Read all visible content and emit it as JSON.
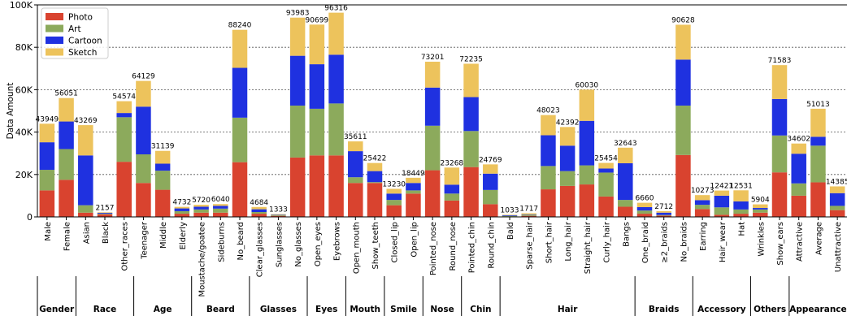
{
  "chart_data": {
    "type": "bar",
    "stacked": true,
    "ylabel": "Data Amount",
    "ylim": [
      0,
      100000
    ],
    "yticks": [
      0,
      20000,
      40000,
      60000,
      80000,
      100000
    ],
    "ytick_labels": [
      "0",
      "20K",
      "40K",
      "60K",
      "80K",
      "100K"
    ],
    "grid": "horizontal dashed",
    "legend_position": "top-left",
    "categories": [
      "Male",
      "Female",
      "Asian",
      "Black",
      "Other_races",
      "Teenager",
      "Middle",
      "Elderly",
      "Moustache/goatee",
      "Sideburns",
      "No_beard",
      "Clear_glasses",
      "Sunglasses",
      "No_glasses",
      "Open_eyes",
      "Eyebrows",
      "Open_mouth",
      "Show_teeth",
      "Closed_lip",
      "Open_lip",
      "Pointed_nose",
      "Round_nose",
      "Pointed_chin",
      "Round_chin",
      "Bald",
      "Sparse_hair",
      "Short_hair",
      "Long_hair",
      "Straight_hair",
      "Curly_hair",
      "Bangs",
      "One_braid",
      "≥2_braids",
      "No_braids",
      "Earring",
      "Hair_wear",
      "Hat",
      "Wrinkles",
      "Show_ears",
      "Attractive",
      "Average",
      "Unattractive"
    ],
    "totals": [
      43949,
      56051,
      43269,
      2157,
      54574,
      64129,
      31139,
      4732,
      5720,
      6040,
      88240,
      4684,
      1333,
      93983,
      90699,
      96316,
      35611,
      25422,
      13230,
      18449,
      73201,
      23268,
      72235,
      24769,
      1033,
      1717,
      48023,
      42392,
      60030,
      25454,
      32643,
      6660,
      2712,
      90628,
      10273,
      12421,
      12531,
      5904,
      71583,
      34602,
      51013,
      14385
    ],
    "total_labels": [
      "43949",
      "56051",
      "43269",
      "2157",
      "54574",
      "64129",
      "31139",
      "4732",
      "5720",
      "6040",
      "88240",
      "4684",
      "1333",
      "93983",
      "90699",
      "96316",
      "35611",
      "25422",
      "13230",
      "18449",
      "73201",
      "23268",
      "72235",
      "24769",
      "1033",
      "1717",
      "48023",
      "42392",
      "60030",
      "25454",
      "32643",
      "6660",
      "2712",
      "90628",
      "10273",
      "12421",
      "12531",
      "5904",
      "71583",
      "34602",
      "51013",
      "14385"
    ],
    "series": [
      {
        "name": "Photo",
        "color": "#d9432f",
        "values": [
          12500,
          17500,
          2000,
          1200,
          26000,
          16000,
          12800,
          1500,
          2000,
          2000,
          25800,
          1500,
          500,
          28000,
          29000,
          29000,
          16000,
          16000,
          5500,
          11000,
          22000,
          7700,
          23500,
          6000,
          200,
          500,
          13000,
          14600,
          15300,
          9600,
          4800,
          1500,
          600,
          29200,
          3700,
          1000,
          1500,
          2000,
          21000,
          10000,
          16300,
          3200
        ]
      },
      {
        "name": "Art",
        "color": "#8caa5c",
        "values": [
          9700,
          14500,
          3500,
          300,
          21000,
          13500,
          9000,
          1200,
          1500,
          1900,
          21000,
          800,
          400,
          24500,
          22000,
          24500,
          2700,
          400,
          2500,
          1500,
          21000,
          3300,
          17000,
          6700,
          300,
          500,
          11000,
          7000,
          9000,
          11300,
          3200,
          1500,
          300,
          23300,
          2000,
          3500,
          2000,
          1500,
          17400,
          5800,
          17300,
          2000
        ]
      },
      {
        "name": "Cartoon",
        "color": "#1f31e0",
        "values": [
          13000,
          13000,
          23500,
          400,
          2000,
          22500,
          3300,
          1300,
          1300,
          1300,
          23500,
          1300,
          200,
          23500,
          21000,
          23000,
          12300,
          5200,
          3000,
          3500,
          18000,
          4200,
          16000,
          7700,
          300,
          200,
          14500,
          12000,
          21000,
          1900,
          17300,
          1600,
          1100,
          21700,
          2200,
          5500,
          3800,
          700,
          17200,
          14000,
          4200,
          6000
        ]
      },
      {
        "name": "Sketch",
        "color": "#edc35c",
        "values": [
          8749,
          11051,
          14269,
          257,
          5574,
          12129,
          6039,
          732,
          920,
          840,
          17940,
          1084,
          233,
          17983,
          18699,
          19816,
          4611,
          3822,
          2230,
          2449,
          12201,
          8068,
          15735,
          4369,
          233,
          517,
          9523,
          8792,
          14730,
          2654,
          7343,
          2060,
          712,
          16428,
          2373,
          2421,
          5231,
          1704,
          15983,
          4802,
          13213,
          3185
        ]
      }
    ],
    "groups": [
      {
        "label": "Gender",
        "count": 2
      },
      {
        "label": "Race",
        "count": 3
      },
      {
        "label": "Age",
        "count": 3
      },
      {
        "label": "Beard",
        "count": 3
      },
      {
        "label": "Glasses",
        "count": 3
      },
      {
        "label": "Eyes",
        "count": 2
      },
      {
        "label": "Mouth",
        "count": 2
      },
      {
        "label": "Smile",
        "count": 2
      },
      {
        "label": "Nose",
        "count": 2
      },
      {
        "label": "Chin",
        "count": 2
      },
      {
        "label": "Hair",
        "count": 7
      },
      {
        "label": "Braids",
        "count": 3
      },
      {
        "label": "Accessory",
        "count": 3
      },
      {
        "label": "Others",
        "count": 2
      },
      {
        "label": "Appearance",
        "count": 3
      }
    ]
  }
}
